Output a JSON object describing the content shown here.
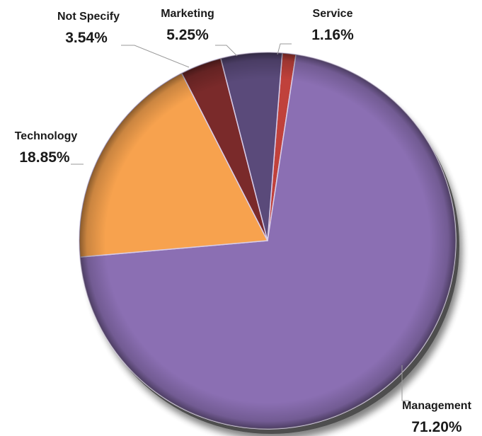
{
  "chart_data": {
    "type": "pie",
    "title": "",
    "categories": [
      "Service",
      "Management",
      "Technology",
      "Not Specify",
      "Marketing"
    ],
    "values": [
      1.16,
      71.2,
      18.85,
      3.54,
      5.25
    ],
    "labels": [
      "1.16%",
      "71.20%",
      "18.85%",
      "3.54%",
      "5.25%"
    ],
    "colors": [
      "#c0413b",
      "#8b6fb3",
      "#f7a24e",
      "#7a2a2a",
      "#5a4a7a"
    ],
    "start_angle_deg": 4.5,
    "direction": "clockwise",
    "style": "3d-bevel",
    "legend": "none",
    "label_position": "outside"
  }
}
